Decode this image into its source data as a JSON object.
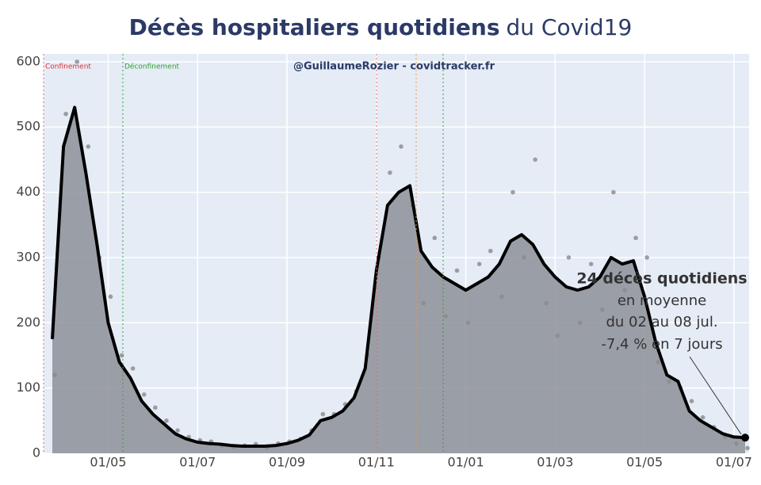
{
  "chart_data": {
    "type": "area",
    "title": "Décès hospitaliers quotidiens",
    "title_suffix": "du Covid19",
    "watermark": "@GuillaumeRozier - covidtracker.fr",
    "event_labels": [
      "Confinement",
      "Déconfinement"
    ],
    "annotation": [
      "24 décès quotidiens",
      "en moyenne",
      "du 02 au 08 jul.",
      "-7,4 % en 7 jours"
    ],
    "categories": [
      null,
      null,
      null,
      null,
      null,
      "01/05",
      null,
      null,
      null,
      null,
      null,
      null,
      null,
      "01/07",
      null,
      null,
      null,
      null,
      null,
      null,
      null,
      "01/09",
      null,
      null,
      null,
      null,
      null,
      null,
      null,
      "01/11",
      null,
      null,
      null,
      null,
      null,
      null,
      null,
      "01/01",
      null,
      null,
      null,
      null,
      null,
      null,
      null,
      "01/03",
      null,
      null,
      null,
      null,
      null,
      null,
      null,
      "01/05",
      null,
      null,
      null,
      null,
      null,
      null,
      null,
      "01/07",
      null
    ],
    "values": [
      175,
      470,
      530,
      430,
      320,
      200,
      140,
      115,
      80,
      60,
      45,
      30,
      22,
      17,
      15,
      14,
      12,
      11,
      11,
      11,
      12,
      15,
      20,
      28,
      50,
      55,
      65,
      85,
      130,
      280,
      380,
      400,
      410,
      310,
      285,
      270,
      260,
      250,
      260,
      270,
      290,
      325,
      335,
      320,
      290,
      270,
      255,
      250,
      255,
      270,
      300,
      290,
      295,
      240,
      170,
      120,
      110,
      65,
      50,
      40,
      30,
      25,
      24
    ],
    "daily_values": [
      120,
      520,
      600,
      470,
      300,
      240,
      150,
      130,
      90,
      70,
      50,
      35,
      25,
      20,
      18,
      12,
      10,
      12,
      14,
      9,
      15,
      18,
      22,
      35,
      60,
      60,
      75,
      95,
      150,
      300,
      430,
      470,
      380,
      230,
      330,
      210,
      280,
      200,
      290,
      310,
      240,
      400,
      300,
      450,
      230,
      180,
      300,
      200,
      290,
      220,
      400,
      250,
      330,
      300,
      140,
      110,
      100,
      80,
      55,
      40,
      25,
      15,
      8
    ],
    "color": "#000000",
    "area_color": "#8d9098",
    "dot_color": "#8a8a8a",
    "ylim": [
      0,
      612
    ],
    "yticks": [
      0,
      100,
      200,
      300,
      400,
      500,
      600
    ],
    "grid": true
  }
}
